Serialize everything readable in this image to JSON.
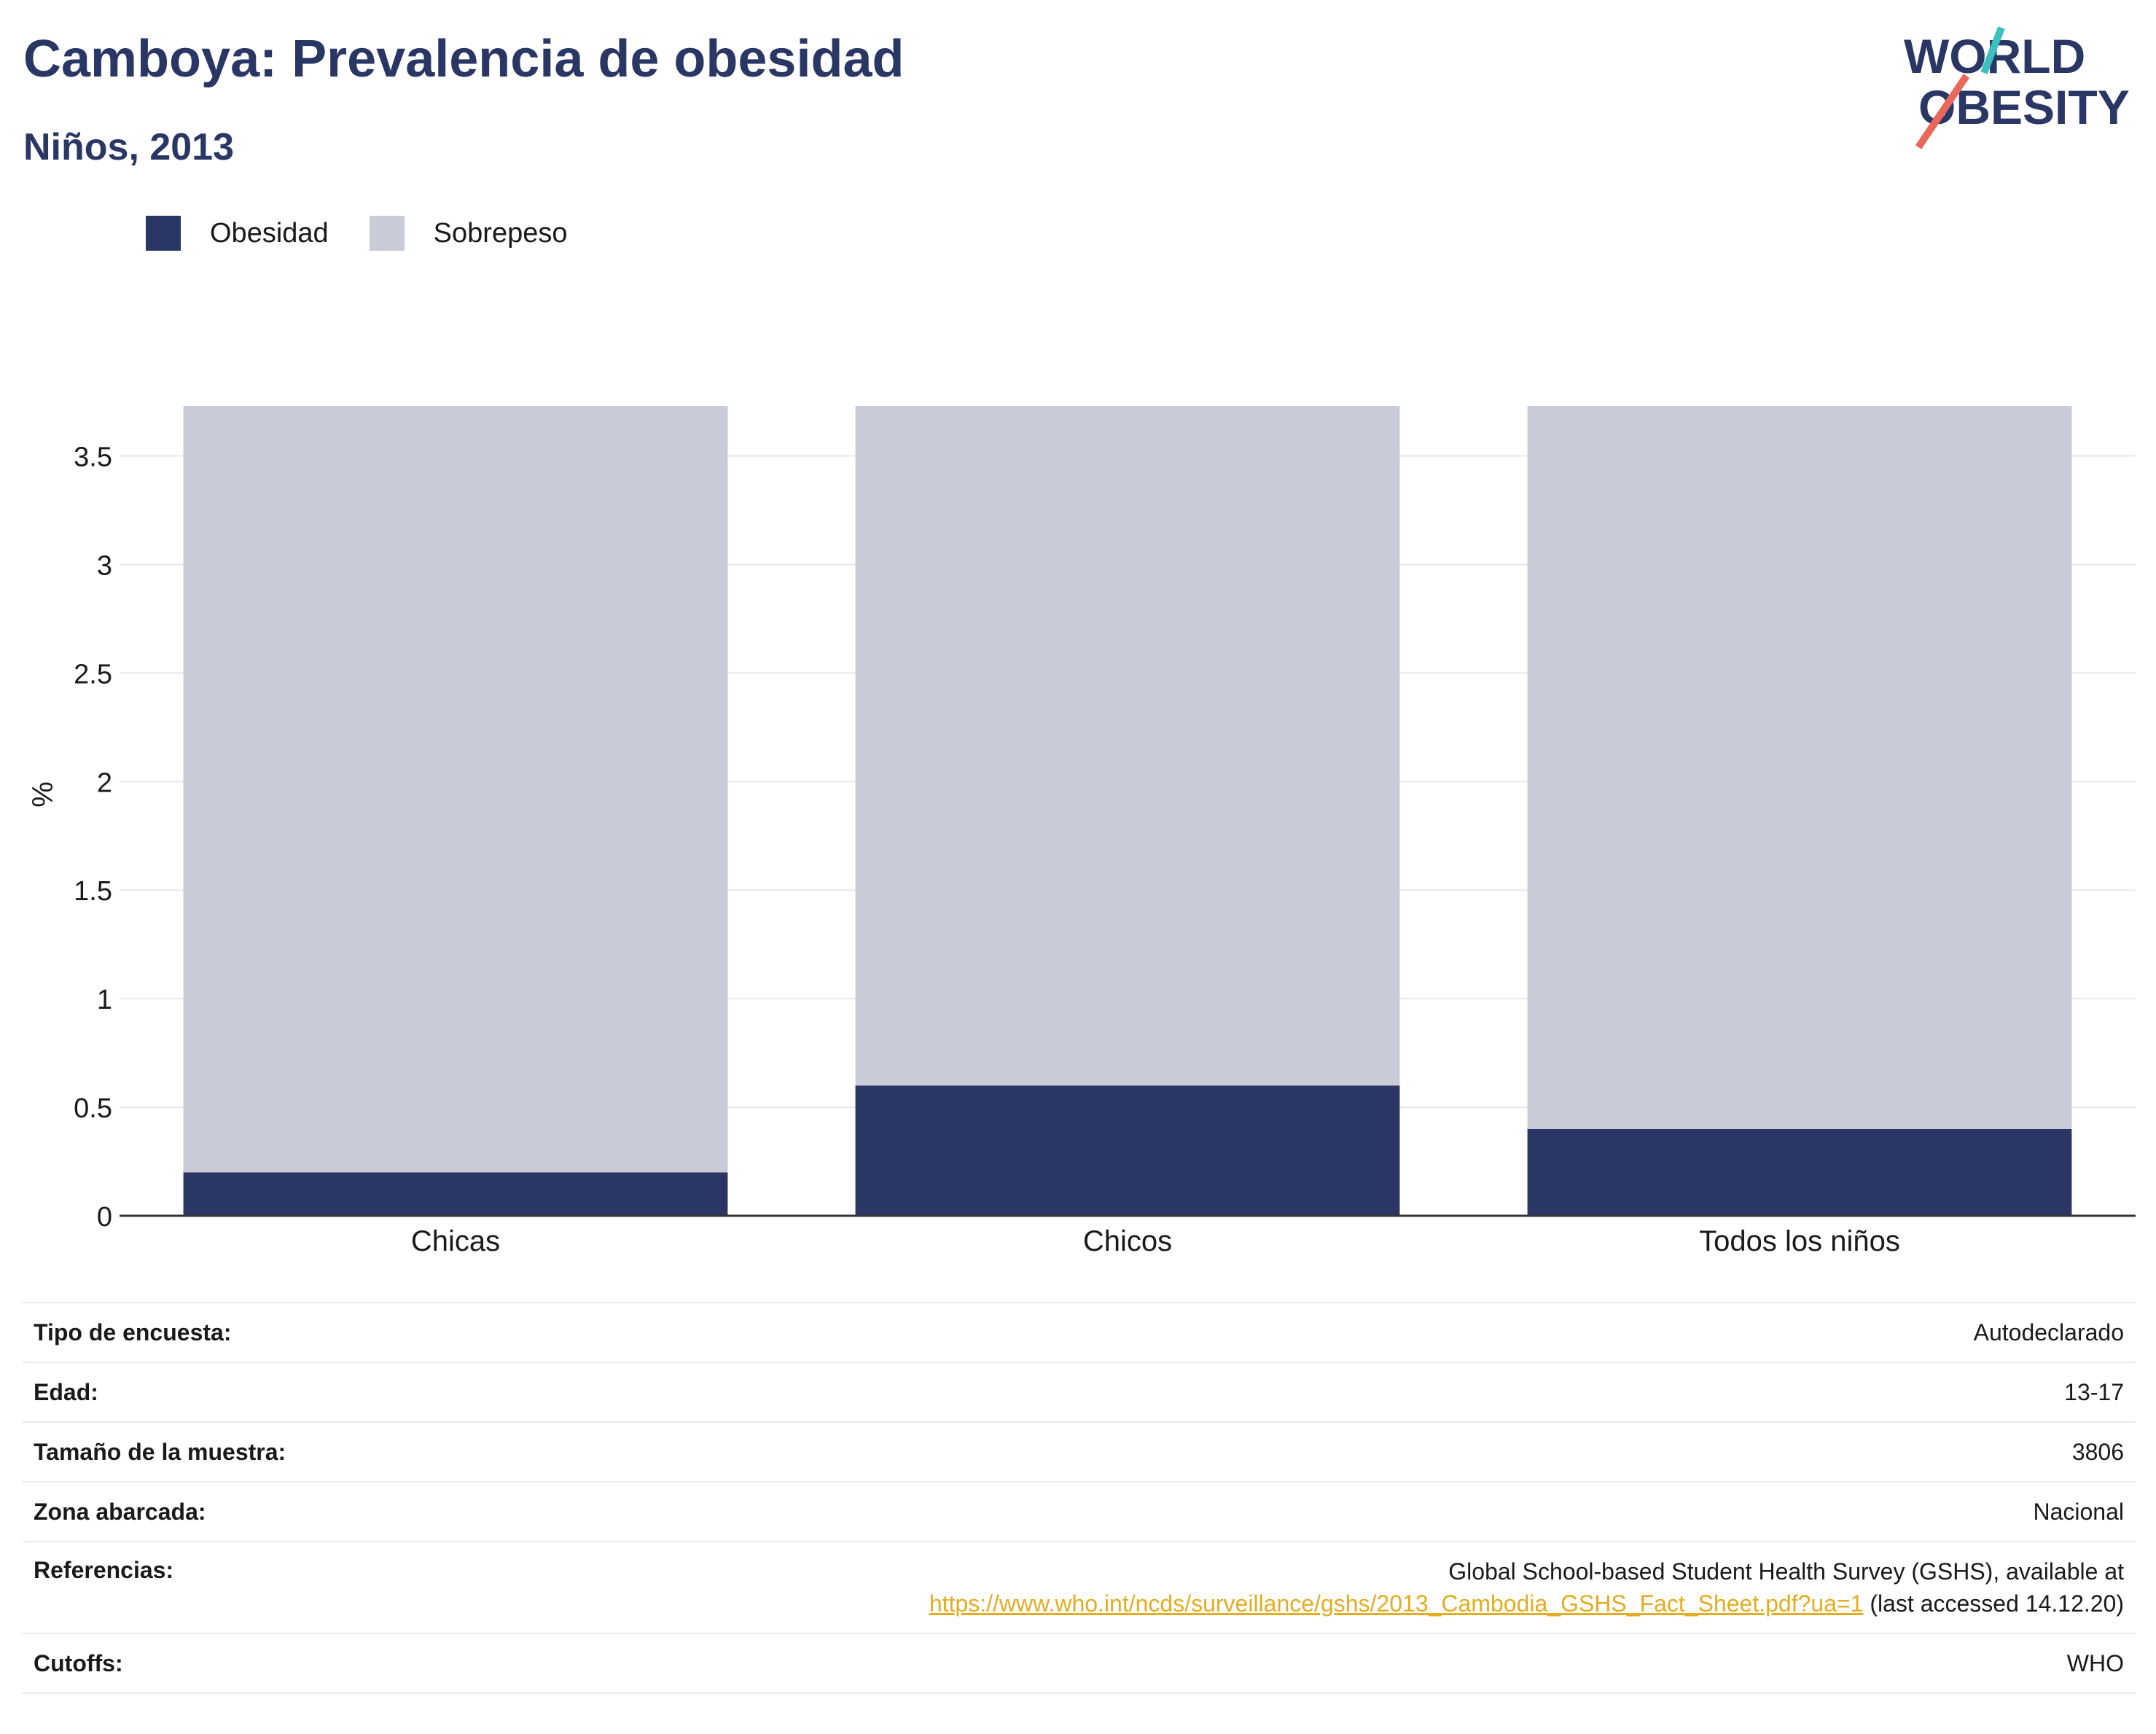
{
  "header": {
    "title": "Camboya: Prevalencia de obesidad",
    "subtitle": "Niños, 2013"
  },
  "logo": {
    "line1": "WORLD",
    "line2": "OBESITY",
    "accent_teal": "#3bbfbf",
    "accent_coral": "#e8695a"
  },
  "legend": {
    "items": [
      {
        "label": "Obesidad",
        "color": "#2a3765"
      },
      {
        "label": "Sobrepeso",
        "color": "#c9ccd8"
      }
    ]
  },
  "chart_data": {
    "type": "bar",
    "stacked": true,
    "categories": [
      "Chicas",
      "Chicos",
      "Todos los niños"
    ],
    "series": [
      {
        "name": "Obesidad",
        "color": "#2a3765",
        "values": [
          0.2,
          0.6,
          0.4
        ]
      },
      {
        "name": "Sobrepeso",
        "color": "#c9ccd8",
        "values": [
          3.53,
          3.13,
          3.33
        ]
      }
    ],
    "ylabel": "%",
    "ylim": [
      0,
      3.72
    ],
    "yticks": [
      0,
      0.5,
      1,
      1.5,
      2,
      2.5,
      3,
      3.5
    ],
    "ytick_labels": [
      "0",
      "0.5",
      "1",
      "1.5",
      "2",
      "2.5",
      "3",
      "3.5"
    ],
    "grid": true,
    "legend_position": "top-left"
  },
  "info": {
    "rows": [
      {
        "label": "Tipo de encuesta:",
        "value": "Autodeclarado"
      },
      {
        "label": "Edad:",
        "value": "13-17"
      },
      {
        "label": "Tamaño de la muestra:",
        "value": "3806"
      },
      {
        "label": "Zona abarcada:",
        "value": "Nacional"
      }
    ],
    "references": {
      "label": "Referencias:",
      "text_before": "Global School-based Student Health Survey (GSHS), available at",
      "link": "https://www.who.int/ncds/surveillance/gshs/2013_Cambodia_GSHS_Fact_Sheet.pdf?ua=1",
      "text_after": " (last accessed 14.12.20)"
    },
    "cutoffs": {
      "label": "Cutoffs:",
      "value": "WHO"
    }
  }
}
